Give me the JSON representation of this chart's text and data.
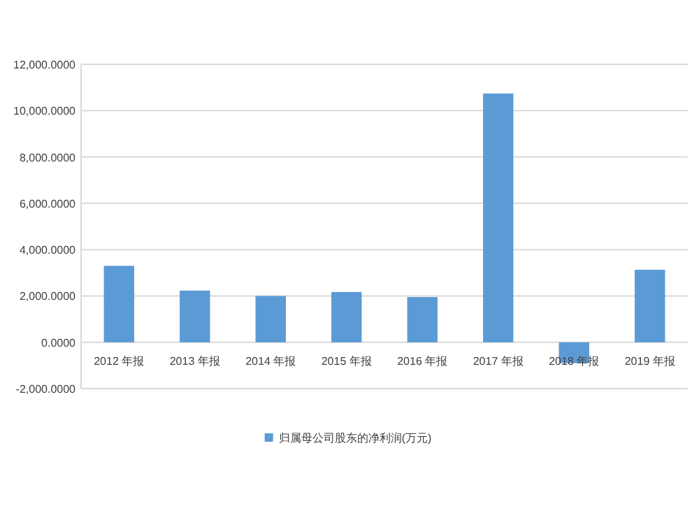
{
  "chart_data": {
    "type": "bar",
    "categories": [
      "2012 年报",
      "2013 年报",
      "2014 年报",
      "2015 年报",
      "2016 年报",
      "2017 年报",
      "2018 年报",
      "2019 年报"
    ],
    "series": [
      {
        "name": "归属母公司股东的净利润(万元)",
        "color": "#5b9bd5",
        "values": [
          3300,
          2230,
          2000,
          2170,
          1950,
          10740,
          -900,
          3130
        ]
      }
    ],
    "ylim": [
      -2000,
      12000
    ],
    "yticks": [
      {
        "value": -2000,
        "label": "-2,000.0000"
      },
      {
        "value": 0,
        "label": "0.0000"
      },
      {
        "value": 2000,
        "label": "2,000.0000"
      },
      {
        "value": 4000,
        "label": "4,000.0000"
      },
      {
        "value": 6000,
        "label": "6,000.0000"
      },
      {
        "value": 8000,
        "label": "8,000.0000"
      },
      {
        "value": 10000,
        "label": "10,000.0000"
      },
      {
        "value": 12000,
        "label": "12,000.0000"
      }
    ],
    "grid": "y",
    "legend": "bottom"
  }
}
